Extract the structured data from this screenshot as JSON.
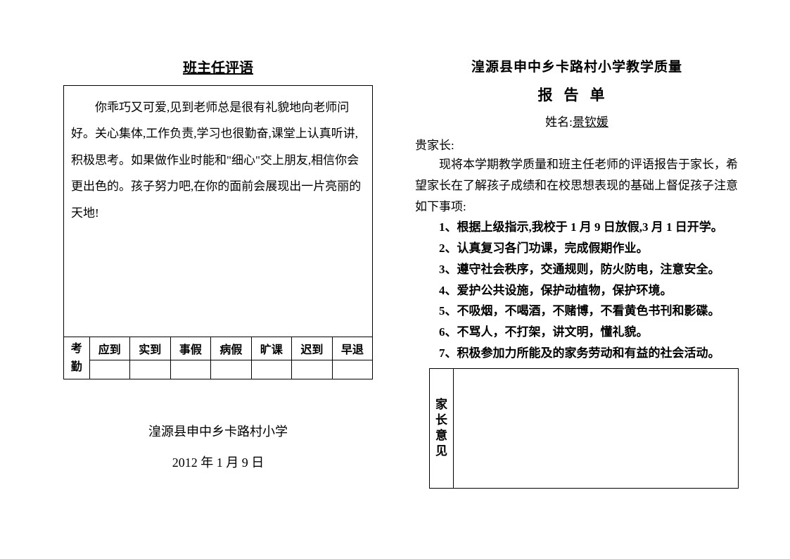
{
  "left": {
    "title": "班主任评语",
    "comment": "你乖巧又可爱,见到老师总是很有礼貌地向老师问好。关心集体,工作负责,学习也很勤奋,课堂上认真听讲,积极思考。如果做作业时能和\"细心\"交上朋友,相信你会更出色的。孩子努力吧,在你的面前会展现出一片亮丽的天地!",
    "attendance": {
      "label": "考勤",
      "headers": [
        "应到",
        "实到",
        "事假",
        "病假",
        "旷课",
        "迟到",
        "早退"
      ]
    },
    "school": "湟源县申中乡卡路村小学",
    "date": "2012 年 1 月 9 日"
  },
  "right": {
    "header1": "湟源县申中乡卡路村小学教学质量",
    "header2": "报告单",
    "name_label": "姓名:",
    "student_name": "景钦媛",
    "greeting": "贵家长:",
    "intro": "现将本学期教学质量和班主任老师的评语报告于家长，希望家长在了解孩子成绩和在校思想表现的基础上督促孩子注意如下事项:",
    "items": [
      "1、根据上级指示,我校于 1 月 9 日放假,3 月 1 日开学。",
      "2、认真复习各门功课，完成假期作业。",
      "3、遵守社会秩序，交通规则，防火防电，注意安全。",
      "4、爱护公共设施，保护动植物，保护环境。",
      "5、不吸烟，不喝酒，不赌博，不看黄色书刊和影碟。",
      "6、不骂人，不打架，讲文明，懂礼貌。",
      "7、积极参加力所能及的家务劳动和有益的社会活动。"
    ],
    "parent_label": "家长意见"
  }
}
